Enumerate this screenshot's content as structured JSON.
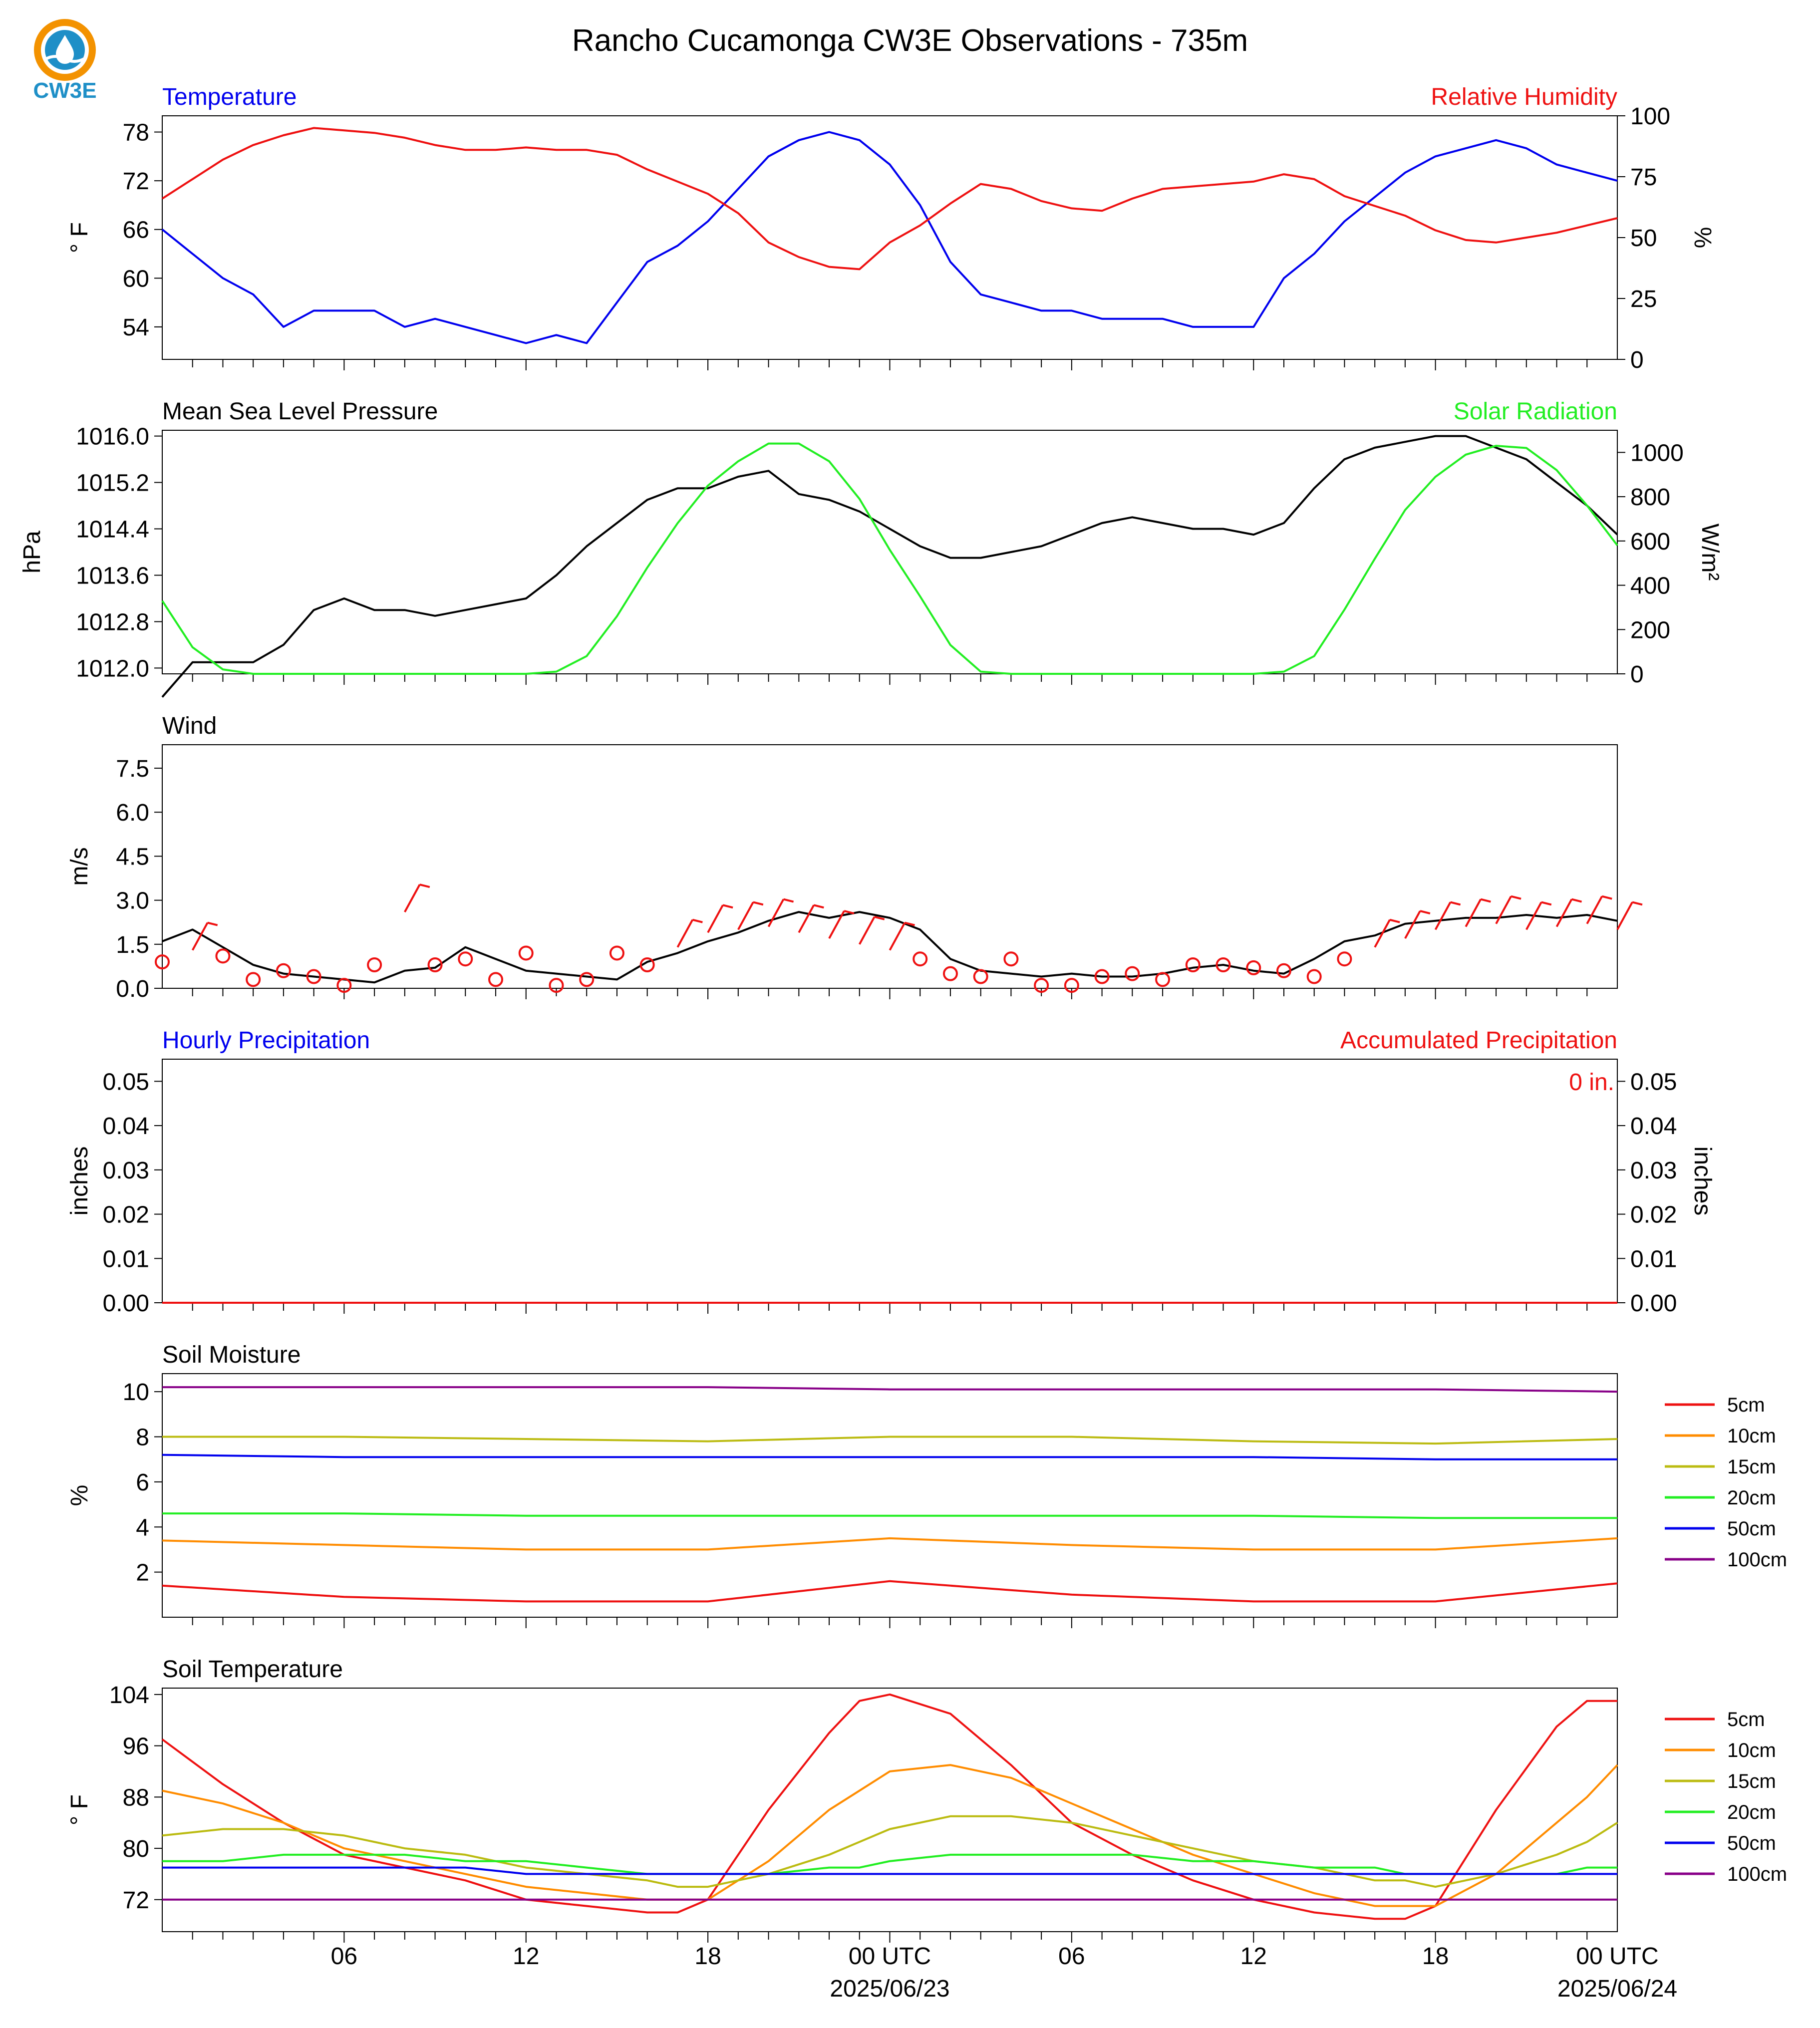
{
  "page": {
    "title": "Rancho Cucamonga CW3E Observations - 735m",
    "logo_text": "CW3E",
    "x_tick_labels": [
      "06",
      "12",
      "18",
      "00 UTC",
      "06",
      "12",
      "18",
      "00 UTC"
    ],
    "x_date_labels": [
      "2025/06/23",
      "2025/06/24"
    ]
  },
  "colors": {
    "temp": "#0000ee",
    "rh": "#ee1111",
    "pressure": "#000000",
    "solar": "#22ee22",
    "wind": "#000000",
    "barbs": "#ee1111",
    "cm5": "#ee1111",
    "cm10": "#ff8c00",
    "cm15": "#bbbb11",
    "cm20": "#22ee22",
    "cm50": "#0000ee",
    "cm100": "#880088"
  },
  "chart_data": [
    {
      "type": "line",
      "id": "temp_rh",
      "title_left": "Temperature",
      "title_right": "Relative Humidity",
      "ylabel_left": "° F",
      "ylabel_right": "%",
      "ylim_left": [
        50,
        80
      ],
      "ylim_right": [
        0,
        100
      ],
      "yticks_left": [
        54,
        60,
        66,
        72,
        78
      ],
      "yticks_right": [
        0,
        25,
        50,
        75,
        100
      ],
      "x_hours": [
        0,
        1,
        2,
        3,
        4,
        5,
        6,
        7,
        8,
        9,
        10,
        11,
        12,
        13,
        14,
        15,
        16,
        17,
        18,
        19,
        20,
        21,
        22,
        23,
        24,
        25,
        26,
        27,
        28,
        29,
        30,
        31,
        32,
        33,
        34,
        35,
        36,
        37,
        38,
        39,
        40,
        41,
        42,
        43,
        44,
        45,
        46,
        47,
        48
      ],
      "series": [
        {
          "name": "Temperature",
          "axis": "left",
          "color_key": "temp",
          "values": [
            66,
            63,
            60,
            58,
            54,
            56,
            56,
            56,
            54,
            55,
            54,
            53,
            52,
            53,
            52,
            57,
            62,
            64,
            67,
            71,
            75,
            77,
            78,
            77,
            74,
            69,
            62,
            58,
            57,
            56,
            56,
            55,
            55,
            55,
            54,
            54,
            54,
            60,
            63,
            67,
            70,
            73,
            75,
            76,
            77,
            76,
            74,
            73,
            72
          ]
        },
        {
          "name": "Relative Humidity",
          "axis": "right",
          "color_key": "rh",
          "values": [
            66,
            74,
            82,
            88,
            92,
            95,
            94,
            93,
            91,
            88,
            86,
            86,
            87,
            86,
            86,
            84,
            78,
            73,
            68,
            60,
            48,
            42,
            38,
            37,
            48,
            55,
            64,
            72,
            70,
            65,
            62,
            61,
            66,
            70,
            71,
            72,
            73,
            76,
            74,
            67,
            63,
            59,
            53,
            49,
            48,
            50,
            52,
            55,
            58
          ]
        }
      ]
    },
    {
      "type": "line",
      "id": "pressure_solar",
      "title_left": "Mean Sea Level Pressure",
      "title_right": "Solar Radiation",
      "ylabel_left": "hPa",
      "ylabel_right": "W/m²",
      "ylim_left": [
        1011.9,
        1016.1
      ],
      "ylim_right": [
        0,
        1100
      ],
      "yticks_left": [
        "1012.0",
        "1012.8",
        "1013.6",
        "1014.4",
        "1015.2",
        "1016.0"
      ],
      "yticks_right": [
        0,
        200,
        400,
        600,
        800,
        1000
      ],
      "x_hours": [
        0,
        1,
        2,
        3,
        4,
        5,
        6,
        7,
        8,
        9,
        10,
        11,
        12,
        13,
        14,
        15,
        16,
        17,
        18,
        19,
        20,
        21,
        22,
        23,
        24,
        25,
        26,
        27,
        28,
        29,
        30,
        31,
        32,
        33,
        34,
        35,
        36,
        37,
        38,
        39,
        40,
        41,
        42,
        43,
        44,
        45,
        46,
        47,
        48
      ],
      "series": [
        {
          "name": "Mean Sea Level Pressure",
          "axis": "left",
          "color_key": "pressure",
          "values": [
            1011.5,
            1012.1,
            1012.1,
            1012.1,
            1012.4,
            1013.0,
            1013.2,
            1013.0,
            1013.0,
            1012.9,
            1013.0,
            1013.1,
            1013.2,
            1013.6,
            1014.1,
            1014.5,
            1014.9,
            1015.1,
            1015.1,
            1015.3,
            1015.4,
            1015.0,
            1014.9,
            1014.7,
            1014.4,
            1014.1,
            1013.9,
            1013.9,
            1014.0,
            1014.1,
            1014.3,
            1014.5,
            1014.6,
            1014.5,
            1014.4,
            1014.4,
            1014.3,
            1014.5,
            1015.1,
            1015.6,
            1015.8,
            1015.9,
            1016.0,
            1016.0,
            1015.8,
            1015.6,
            1015.2,
            1014.8,
            1014.3
          ]
        },
        {
          "name": "Solar Radiation",
          "axis": "right",
          "color_key": "solar",
          "values": [
            330,
            120,
            20,
            0,
            0,
            0,
            0,
            0,
            0,
            0,
            0,
            0,
            0,
            10,
            80,
            260,
            480,
            680,
            850,
            960,
            1040,
            1040,
            960,
            790,
            560,
            350,
            130,
            10,
            0,
            0,
            0,
            0,
            0,
            0,
            0,
            0,
            0,
            10,
            80,
            290,
            520,
            740,
            890,
            990,
            1030,
            1020,
            920,
            760,
            580
          ]
        }
      ]
    },
    {
      "type": "line",
      "id": "wind",
      "title_left": "Wind",
      "ylabel_left": "m/s",
      "ylim_left": [
        0,
        8.3
      ],
      "yticks_left": [
        "0.0",
        "1.5",
        "3.0",
        "4.5",
        "6.0",
        "7.5"
      ],
      "x_hours": [
        0,
        1,
        2,
        3,
        4,
        5,
        6,
        7,
        8,
        9,
        10,
        11,
        12,
        13,
        14,
        15,
        16,
        17,
        18,
        19,
        20,
        21,
        22,
        23,
        24,
        25,
        26,
        27,
        28,
        29,
        30,
        31,
        32,
        33,
        34,
        35,
        36,
        37,
        38,
        39,
        40,
        41,
        42,
        43,
        44,
        45,
        46,
        47,
        48
      ],
      "series": [
        {
          "name": "Wind",
          "axis": "left",
          "color_key": "wind",
          "values": [
            1.6,
            2.0,
            1.4,
            0.8,
            0.5,
            0.4,
            0.3,
            0.2,
            0.6,
            0.7,
            1.4,
            1.0,
            0.6,
            0.5,
            0.4,
            0.3,
            0.9,
            1.2,
            1.6,
            1.9,
            2.3,
            2.6,
            2.4,
            2.6,
            2.4,
            2.0,
            1.0,
            0.6,
            0.5,
            0.4,
            0.5,
            0.4,
            0.4,
            0.5,
            0.7,
            0.8,
            0.6,
            0.5,
            1.0,
            1.6,
            1.8,
            2.2,
            2.3,
            2.4,
            2.4,
            2.5,
            2.4,
            2.5,
            2.3
          ]
        },
        {
          "name": "Wind barbs",
          "axis": "left",
          "color_key": "barbs",
          "values": [
            0.9,
            1.3,
            1.1,
            0.3,
            0.6,
            0.4,
            0.1,
            0.8,
            2.6,
            0.8,
            1.0,
            0.3,
            1.2,
            0.1,
            0.3,
            1.2,
            0.8,
            1.4,
            1.9,
            2.0,
            2.1,
            1.9,
            1.7,
            1.5,
            1.3,
            1.0,
            0.5,
            0.4,
            1.0,
            0.1,
            0.1,
            0.4,
            0.5,
            0.3,
            0.8,
            0.8,
            0.7,
            0.6,
            0.4,
            1.0,
            1.4,
            1.7,
            2.0,
            2.1,
            2.2,
            2.0,
            2.1,
            2.2,
            2.0
          ]
        }
      ]
    },
    {
      "type": "line",
      "id": "precip",
      "title_left": "Hourly Precipitation",
      "title_right": "Accumulated Precipitation",
      "annotation": "0 in.",
      "ylabel_left": "inches",
      "ylabel_right": "inches",
      "ylim_left": [
        0,
        0.055
      ],
      "ylim_right": [
        0,
        0.055
      ],
      "yticks_left": [
        "0.00",
        "0.01",
        "0.02",
        "0.03",
        "0.04",
        "0.05"
      ],
      "yticks_right": [
        "0.00",
        "0.01",
        "0.02",
        "0.03",
        "0.04",
        "0.05"
      ],
      "x_hours": [
        0,
        48
      ],
      "series": [
        {
          "name": "Hourly Precipitation",
          "axis": "left",
          "color_key": "temp",
          "values": [
            0,
            0
          ]
        },
        {
          "name": "Accumulated Precipitation",
          "axis": "right",
          "color_key": "rh",
          "values": [
            0,
            0
          ]
        }
      ]
    },
    {
      "type": "line",
      "id": "soil_moisture",
      "title_left": "Soil Moisture",
      "ylabel_left": "%",
      "ylim_left": [
        0,
        10.8
      ],
      "yticks_left": [
        2,
        4,
        6,
        8,
        10
      ],
      "legend": [
        "5cm",
        "10cm",
        "15cm",
        "20cm",
        "50cm",
        "100cm"
      ],
      "x_hours": [
        0,
        6,
        12,
        18,
        24,
        30,
        36,
        42,
        48
      ],
      "series": [
        {
          "name": "5cm",
          "axis": "left",
          "color_key": "cm5",
          "values": [
            1.4,
            0.9,
            0.7,
            0.7,
            1.6,
            1.0,
            0.7,
            0.7,
            1.5
          ]
        },
        {
          "name": "10cm",
          "axis": "left",
          "color_key": "cm10",
          "values": [
            3.4,
            3.2,
            3.0,
            3.0,
            3.5,
            3.2,
            3.0,
            3.0,
            3.5
          ]
        },
        {
          "name": "15cm",
          "axis": "left",
          "color_key": "cm15",
          "values": [
            8.0,
            8.0,
            7.9,
            7.8,
            8.0,
            8.0,
            7.8,
            7.7,
            7.9
          ]
        },
        {
          "name": "20cm",
          "axis": "left",
          "color_key": "cm20",
          "values": [
            4.6,
            4.6,
            4.5,
            4.5,
            4.5,
            4.5,
            4.5,
            4.4,
            4.4
          ]
        },
        {
          "name": "50cm",
          "axis": "left",
          "color_key": "cm50",
          "values": [
            7.2,
            7.1,
            7.1,
            7.1,
            7.1,
            7.1,
            7.1,
            7.0,
            7.0
          ]
        },
        {
          "name": "100cm",
          "axis": "left",
          "color_key": "cm100",
          "values": [
            10.2,
            10.2,
            10.2,
            10.2,
            10.1,
            10.1,
            10.1,
            10.1,
            10.0
          ]
        }
      ]
    },
    {
      "type": "line",
      "id": "soil_temperature",
      "title_left": "Soil Temperature",
      "ylabel_left": "° F",
      "ylim_left": [
        67,
        105
      ],
      "yticks_left": [
        72,
        80,
        88,
        96,
        104
      ],
      "legend": [
        "5cm",
        "10cm",
        "15cm",
        "20cm",
        "50cm",
        "100cm"
      ],
      "x_hours": [
        0,
        2,
        4,
        6,
        8,
        10,
        12,
        14,
        16,
        17,
        18,
        20,
        22,
        23,
        24,
        26,
        28,
        30,
        32,
        34,
        36,
        38,
        40,
        41,
        42,
        44,
        46,
        47,
        48
      ],
      "series": [
        {
          "name": "5cm",
          "axis": "left",
          "color_key": "cm5",
          "values": [
            97,
            90,
            84,
            79,
            77,
            75,
            72,
            71,
            70,
            70,
            72,
            86,
            98,
            103,
            104,
            101,
            93,
            84,
            79,
            75,
            72,
            70,
            69,
            69,
            71,
            86,
            99,
            103,
            103
          ]
        },
        {
          "name": "10cm",
          "axis": "left",
          "color_key": "cm10",
          "values": [
            89,
            87,
            84,
            80,
            78,
            76,
            74,
            73,
            72,
            72,
            72,
            78,
            86,
            89,
            92,
            93,
            91,
            87,
            83,
            79,
            76,
            73,
            71,
            71,
            71,
            76,
            84,
            88,
            93
          ]
        },
        {
          "name": "15cm",
          "axis": "left",
          "color_key": "cm15",
          "values": [
            82,
            83,
            83,
            82,
            80,
            79,
            77,
            76,
            75,
            74,
            74,
            76,
            79,
            81,
            83,
            85,
            85,
            84,
            82,
            80,
            78,
            77,
            75,
            75,
            74,
            76,
            79,
            81,
            84
          ]
        },
        {
          "name": "20cm",
          "axis": "left",
          "color_key": "cm20",
          "values": [
            78,
            78,
            79,
            79,
            79,
            78,
            78,
            77,
            76,
            76,
            76,
            76,
            77,
            77,
            78,
            79,
            79,
            79,
            79,
            78,
            78,
            77,
            77,
            76,
            76,
            76,
            76,
            77,
            77
          ]
        },
        {
          "name": "50cm",
          "axis": "left",
          "color_key": "cm50",
          "values": [
            77,
            77,
            77,
            77,
            77,
            77,
            76,
            76,
            76,
            76,
            76,
            76,
            76,
            76,
            76,
            76,
            76,
            76,
            76,
            76,
            76,
            76,
            76,
            76,
            76,
            76,
            76,
            76,
            76
          ]
        },
        {
          "name": "100cm",
          "axis": "left",
          "color_key": "cm100",
          "values": [
            72,
            72,
            72,
            72,
            72,
            72,
            72,
            72,
            72,
            72,
            72,
            72,
            72,
            72,
            72,
            72,
            72,
            72,
            72,
            72,
            72,
            72,
            72,
            72,
            72,
            72,
            72,
            72,
            72
          ]
        }
      ]
    }
  ]
}
